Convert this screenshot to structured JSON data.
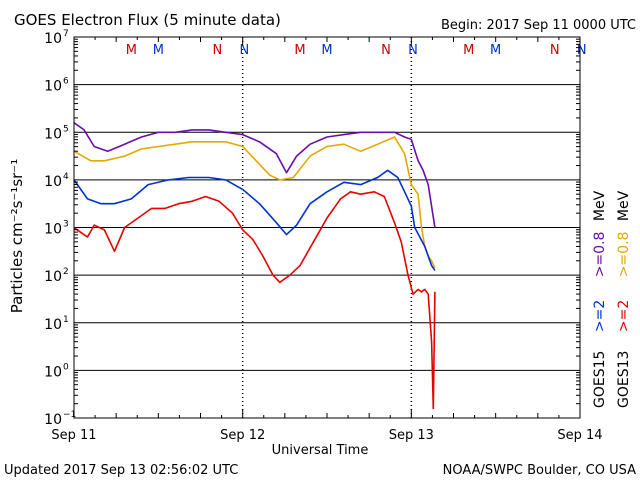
{
  "chart_data": {
    "type": "line",
    "title": "GOES Electron Flux (5 minute data)",
    "begin_label": "Begin: 2017 Sep 11 0000 UTC",
    "xlabel": "Universal Time",
    "ylabel": "Particles cm⁻²s⁻¹sr⁻¹",
    "x_unit": "days since 2017 Sep 11 0000 UTC",
    "xlim": [
      0,
      3
    ],
    "x_ticks": [
      {
        "x": 0,
        "label": "Sep 11"
      },
      {
        "x": 1,
        "label": "Sep 12"
      },
      {
        "x": 2,
        "label": "Sep 13"
      },
      {
        "x": 3,
        "label": "Sep 14"
      }
    ],
    "y_scale": "log",
    "ylim_exp": [
      -1,
      7
    ],
    "y_ticks": [
      {
        "exp": 7,
        "label": "10",
        "sup": "7"
      },
      {
        "exp": 6,
        "label": "10",
        "sup": "6"
      },
      {
        "exp": 5,
        "label": "10",
        "sup": "5"
      },
      {
        "exp": 4,
        "label": "10",
        "sup": "4"
      },
      {
        "exp": 3,
        "label": "10",
        "sup": "3"
      },
      {
        "exp": 2,
        "label": "10",
        "sup": "2"
      },
      {
        "exp": 1,
        "label": "10",
        "sup": "1"
      },
      {
        "exp": 0,
        "label": "10",
        "sup": "0"
      },
      {
        "exp": -1,
        "label": "10",
        "sup": "−1"
      }
    ],
    "threshold_exp": 3,
    "markers": [
      {
        "x": 0.34,
        "text": "M",
        "color": "#cc0000"
      },
      {
        "x": 0.5,
        "text": "M",
        "color": "#0033cc"
      },
      {
        "x": 0.85,
        "text": "N",
        "color": "#cc0000"
      },
      {
        "x": 1.01,
        "text": "N",
        "color": "#0033cc"
      },
      {
        "x": 1.34,
        "text": "M",
        "color": "#cc0000"
      },
      {
        "x": 1.5,
        "text": "M",
        "color": "#0033cc"
      },
      {
        "x": 1.85,
        "text": "N",
        "color": "#cc0000"
      },
      {
        "x": 2.01,
        "text": "N",
        "color": "#0033cc"
      },
      {
        "x": 2.34,
        "text": "M",
        "color": "#cc0000"
      },
      {
        "x": 2.5,
        "text": "M",
        "color": "#0033cc"
      },
      {
        "x": 2.85,
        "text": "N",
        "color": "#cc0000"
      },
      {
        "x": 3.01,
        "text": "N",
        "color": "#0033cc"
      }
    ],
    "legend": {
      "goes15": "GOES15",
      "goes13": "GOES13",
      "g15_ge2": ">=2",
      "g13_ge2": ">=2",
      "g15_ge08": ">=0.8",
      "g13_ge08": ">=0.8",
      "unit": "MeV"
    },
    "series": [
      {
        "name": "GOES15 >=0.8 MeV",
        "color": "#6a0dad",
        "x": [
          0,
          0.06,
          0.12,
          0.2,
          0.3,
          0.4,
          0.5,
          0.6,
          0.7,
          0.8,
          0.9,
          1.0,
          1.1,
          1.2,
          1.26,
          1.32,
          1.4,
          1.5,
          1.6,
          1.7,
          1.8,
          1.9,
          1.96,
          2.0,
          2.04,
          2.07,
          2.1,
          2.14
        ],
        "exp": [
          5.2,
          5.05,
          4.7,
          4.6,
          4.75,
          4.9,
          5.0,
          5.0,
          5.05,
          5.05,
          5.0,
          4.95,
          4.8,
          4.55,
          4.15,
          4.5,
          4.75,
          4.9,
          4.95,
          5.0,
          5.0,
          5.0,
          4.9,
          4.85,
          4.4,
          4.2,
          3.9,
          3.0
        ]
      },
      {
        "name": "GOES13 >=0.8 MeV",
        "color": "#e6a800",
        "x": [
          0,
          0.1,
          0.18,
          0.3,
          0.4,
          0.5,
          0.6,
          0.7,
          0.8,
          0.9,
          1.0,
          1.08,
          1.16,
          1.22,
          1.3,
          1.4,
          1.5,
          1.6,
          1.7,
          1.8,
          1.9,
          1.96,
          2.0,
          2.04,
          2.06,
          2.08,
          2.1,
          2.12,
          2.14
        ],
        "exp": [
          4.6,
          4.4,
          4.4,
          4.5,
          4.65,
          4.7,
          4.75,
          4.8,
          4.8,
          4.8,
          4.7,
          4.4,
          4.1,
          4.0,
          4.05,
          4.5,
          4.7,
          4.75,
          4.6,
          4.75,
          4.9,
          4.55,
          3.9,
          3.7,
          3.0,
          2.6,
          2.4,
          2.3,
          2.15
        ]
      },
      {
        "name": "GOES15 >=2 MeV",
        "color": "#0033cc",
        "x": [
          0,
          0.08,
          0.16,
          0.24,
          0.34,
          0.44,
          0.56,
          0.68,
          0.8,
          0.9,
          1.0,
          1.1,
          1.2,
          1.26,
          1.32,
          1.4,
          1.5,
          1.6,
          1.7,
          1.8,
          1.86,
          1.92,
          1.96,
          2.0,
          2.02,
          2.05,
          2.08,
          2.1,
          2.12,
          2.14
        ],
        "exp": [
          4.0,
          3.6,
          3.5,
          3.5,
          3.6,
          3.9,
          4.0,
          4.05,
          4.05,
          4.0,
          3.8,
          3.5,
          3.1,
          2.85,
          3.05,
          3.5,
          3.75,
          3.95,
          3.9,
          4.05,
          4.2,
          4.05,
          3.75,
          3.45,
          3.0,
          2.8,
          2.6,
          2.4,
          2.2,
          2.1
        ]
      },
      {
        "name": "GOES13 >=2 MeV",
        "color": "#e60000",
        "x": [
          0,
          0.04,
          0.08,
          0.12,
          0.18,
          0.24,
          0.3,
          0.38,
          0.46,
          0.54,
          0.62,
          0.7,
          0.78,
          0.86,
          0.94,
          1.0,
          1.06,
          1.12,
          1.18,
          1.22,
          1.28,
          1.34,
          1.42,
          1.5,
          1.58,
          1.64,
          1.7,
          1.78,
          1.84,
          1.9,
          1.94,
          1.98,
          2.01,
          2.04,
          2.06,
          2.08,
          2.1,
          2.12,
          2.13,
          2.14
        ],
        "exp": [
          3.0,
          2.9,
          2.8,
          3.05,
          2.95,
          2.5,
          3.0,
          3.2,
          3.4,
          3.4,
          3.5,
          3.55,
          3.65,
          3.55,
          3.3,
          2.95,
          2.75,
          2.4,
          2.0,
          1.85,
          2.0,
          2.2,
          2.7,
          3.2,
          3.6,
          3.75,
          3.7,
          3.75,
          3.65,
          3.1,
          2.7,
          2.0,
          1.6,
          1.7,
          1.65,
          1.7,
          1.6,
          0.6,
          -0.8,
          1.65
        ]
      }
    ]
  },
  "footer": {
    "updated": "Updated 2017 Sep 13 02:56:02 UTC",
    "credit": "NOAA/SWPC Boulder, CO USA"
  }
}
